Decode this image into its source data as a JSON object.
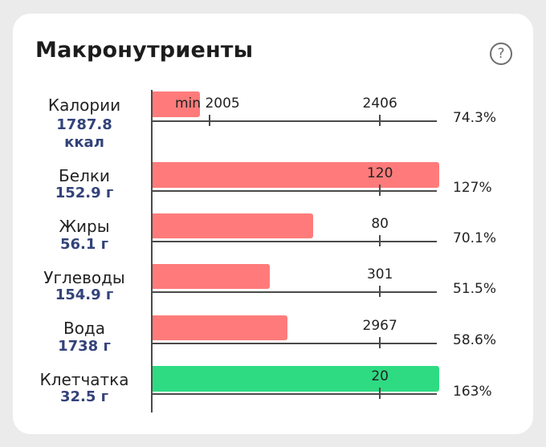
{
  "title": "Макронутриенты",
  "help_icon": "?",
  "colors": {
    "bar_red": "#ff7b7b",
    "bar_green": "#2edb82",
    "value_text": "#33437a"
  },
  "rows": [
    {
      "name": "Калории",
      "value": "1787.8",
      "unit": "ккал",
      "percent": "74.3%",
      "color": "red",
      "fraction": 0.165,
      "ticks": [
        {
          "label": "min 2005",
          "pos": 0.2
        },
        {
          "label": "2406",
          "pos": 0.8
        }
      ]
    },
    {
      "name": "Белки",
      "value": "152.9 г",
      "percent": "127%",
      "color": "red",
      "fraction": 1.0,
      "ticks": [
        {
          "label": "120",
          "pos": 0.8
        }
      ]
    },
    {
      "name": "Жиры",
      "value": "56.1 г",
      "percent": "70.1%",
      "color": "red",
      "fraction": 0.56,
      "ticks": [
        {
          "label": "80",
          "pos": 0.8
        }
      ]
    },
    {
      "name": "Углеводы",
      "value": "154.9 г",
      "percent": "51.5%",
      "color": "red",
      "fraction": 0.41,
      "ticks": [
        {
          "label": "301",
          "pos": 0.8
        }
      ]
    },
    {
      "name": "Вода",
      "value": "1738 г",
      "percent": "58.6%",
      "color": "red",
      "fraction": 0.47,
      "ticks": [
        {
          "label": "2967",
          "pos": 0.8
        }
      ]
    },
    {
      "name": "Клетчатка",
      "value": "32.5 г",
      "percent": "163%",
      "color": "green",
      "fraction": 1.0,
      "ticks": [
        {
          "label": "20",
          "pos": 0.8
        }
      ]
    }
  ]
}
